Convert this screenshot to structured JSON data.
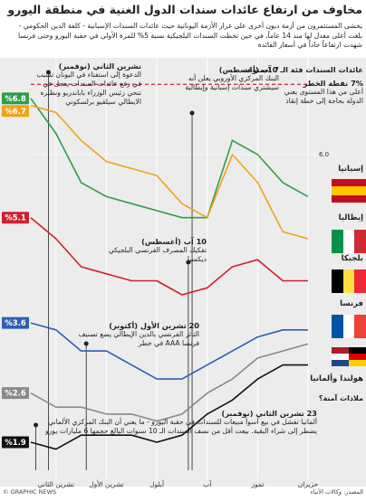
{
  "chart_data": {
    "type": "line",
    "title": "مخاوف من ارتفاع عائدات سندات الدول الغنية في منطقة اليورو",
    "subtitle": "يخشى المستثمرون من أزمة ديون أخرى على غرار الأزمة اليونانية حيث عائدات السندات الإسبانية - كلفة الدين الحكومي - بلغت أعلى معدل لها منذ 14 عاماً، في حين تخطت السندات البلجيكية نسبة 5% للمرة الأولى في حقبة اليورو وحتى فرنسا شهدت ارتفاعاً حاداً في أسعار الفائدة",
    "y_label": "عائدات السندات فئة الـ 10سنوات",
    "categories": [
      "حزيران",
      null,
      "تموز",
      null,
      "آب",
      null,
      "أيلول",
      null,
      "تشرين الأول",
      null,
      "تشرين الثاني",
      null
    ],
    "reverse_x": true,
    "ylim": [
      1.5,
      7.3
    ],
    "yticks": [
      {
        "value": 6,
        "label": "6.0"
      }
    ],
    "threshold": 7,
    "series": [
      {
        "name": "إسبانيا",
        "color": "#2e9e48",
        "values": [
          5.4,
          5.6,
          6.0,
          6.2,
          5.1,
          5.1,
          5.2,
          5.3,
          5.4,
          5.6,
          6.3,
          6.8
        ],
        "value_labels": [
          null,
          null,
          null,
          null,
          null,
          null,
          null,
          null,
          null,
          null,
          null,
          "%6.8"
        ]
      },
      {
        "name": "إيطاليا",
        "color": "#f2a21b",
        "values": [
          4.8,
          4.9,
          5.6,
          6.0,
          5.1,
          5.3,
          5.7,
          5.8,
          5.9,
          6.2,
          6.6,
          6.7
        ],
        "value_labels": [
          null,
          null,
          null,
          null,
          null,
          null,
          null,
          null,
          null,
          null,
          null,
          "%6.7"
        ]
      },
      {
        "name": "بلجيكا",
        "color": "#d0202e",
        "values": [
          4.2,
          4.2,
          4.5,
          4.4,
          4.1,
          4.0,
          4.2,
          4.2,
          4.3,
          4.4,
          4.8,
          5.1
        ],
        "value_labels": [
          null,
          null,
          null,
          null,
          null,
          null,
          null,
          null,
          null,
          null,
          null,
          "%5.1"
        ]
      },
      {
        "name": "فرنسا",
        "color": "#2f5fb3",
        "values": [
          3.5,
          3.5,
          3.4,
          3.2,
          3.0,
          2.8,
          2.8,
          3.0,
          3.2,
          3.2,
          3.5,
          3.6
        ],
        "value_labels": [
          null,
          null,
          null,
          null,
          null,
          null,
          null,
          null,
          null,
          null,
          null,
          "%3.6"
        ]
      },
      {
        "name": "هولندا وألمانيا",
        "color": "#8a8a8a",
        "values": [
          3.3,
          3.2,
          3.1,
          2.8,
          2.6,
          2.3,
          2.2,
          2.3,
          2.3,
          2.4,
          2.4,
          2.6
        ],
        "value_labels": [
          null,
          null,
          null,
          null,
          null,
          null,
          null,
          null,
          null,
          null,
          null,
          "%2.6"
        ]
      },
      {
        "color": "#111111",
        "values": [
          3.0,
          3.0,
          2.8,
          2.5,
          2.3,
          2.0,
          1.9,
          2.0,
          2.0,
          2.0,
          1.8,
          1.9
        ],
        "value_labels": [
          null,
          null,
          null,
          null,
          null,
          null,
          null,
          null,
          null,
          null,
          null,
          "%1.9"
        ]
      }
    ],
    "annotations": [
      {
        "title": "7% نقطة الخطر",
        "text": "أعلى من هذا المستوى يعني الدولة بحاجة إلى خطة إنقاذ"
      },
      {
        "title": "7 آب (أغسطس)",
        "text": "البنك المركزي الأوروبي يعلن أنه سيشتري سندات إسبانية وإيطالية"
      },
      {
        "title": "تشرين الثاني (نوفمبر)",
        "text": "الدعوة إلى استفتاء في اليونان تسبب في رفع عائدات السندات يعجل في تنحي رئيس الوزراء باباندريو ونظيره الايطالي سيلفيو برلسكوني"
      },
      {
        "title": "10 آب (أغسطس)",
        "text": "تفكيك المصرف الفرنسي البلجيكي ديكسيا"
      },
      {
        "title": "20 تشرين الأول (أكتوبر)",
        "text": "التأثر الفرنسي بالدين الإيطالي يضع تصنيف فرنسا AAA في خطر"
      },
      {
        "title": "23 تشرين الثاني (نوفمبر)",
        "text": "ألمانيا تفشل في بيع أسوأ مبيعات للسندات في حقبة اليورو - ما يعني أن البنك المركزي الألماني يضطر إلى شراء البقية. بيعت أقل من نصف السندات الـ 10 سنوات البالغ حجمها 6 مليارات يورو"
      }
    ],
    "safe_havens": "ملاذات آمنة؟",
    "source": "المصدر: وكالات الأنباء",
    "credit": "© GRAPHIC NEWS"
  }
}
